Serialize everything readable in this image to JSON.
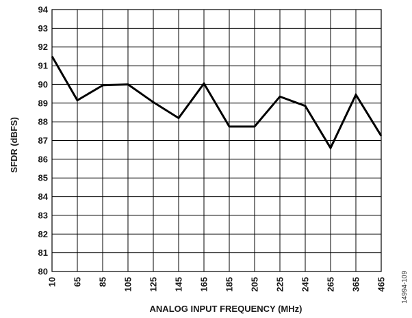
{
  "chart_data": {
    "type": "line",
    "xlabel": "ANALOG INPUT FREQUENCY (MHz)",
    "ylabel": "SFDR (dBFS)",
    "categories": [
      "10",
      "65",
      "85",
      "105",
      "125",
      "145",
      "165",
      "185",
      "205",
      "225",
      "245",
      "265",
      "365",
      "465"
    ],
    "series": [
      {
        "values": [
          91.5,
          89.15,
          89.95,
          90.0,
          89.05,
          88.2,
          90.05,
          87.75,
          87.75,
          89.35,
          88.85,
          86.6,
          89.45,
          87.25
        ]
      }
    ],
    "ylim": [
      80,
      94
    ],
    "yticks": [
      80,
      81,
      82,
      83,
      84,
      85,
      86,
      87,
      88,
      89,
      90,
      91,
      92,
      93,
      94
    ],
    "grid": true,
    "line_color": "#000000",
    "grid_color": "#000000"
  },
  "figure_id": "14994-109"
}
